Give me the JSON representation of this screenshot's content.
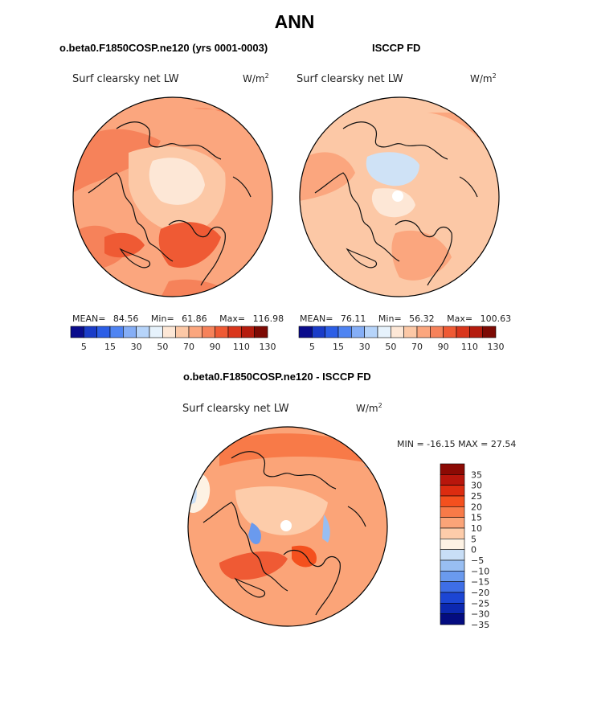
{
  "figure": {
    "title": "ANN",
    "left_header": "o.beta0.F1850COSP.ne120 (yrs 0001-0003)",
    "right_header": "ISCCP FD",
    "diff_header": "o.beta0.F1850COSP.ne120 - ISCCP FD"
  },
  "panels": {
    "model": {
      "variable": "Surf clearsky net LW",
      "units_base": "W/m",
      "units_exp": "2",
      "mean_label": "MEAN=",
      "mean": "84.56",
      "min_label": "Min=",
      "min": "61.86",
      "max_label": "Max=",
      "max": "116.98"
    },
    "obs": {
      "variable": "Surf clearsky net LW",
      "units_base": "W/m",
      "units_exp": "2",
      "mean_label": "MEAN=",
      "mean": "76.11",
      "min_label": "Min=",
      "min": "56.32",
      "max_label": "Max=",
      "max": "100.63"
    },
    "diff": {
      "variable": "Surf clearsky net LW",
      "units_base": "W/m",
      "units_exp": "2",
      "minmax_text": "MIN = -16.15 MAX =  27.54"
    }
  },
  "colorbar_abs": {
    "tick_labels": [
      "5",
      "15",
      "30",
      "50",
      "70",
      "90",
      "110",
      "130"
    ],
    "colors": [
      "#0a0c8c",
      "#1a3cc8",
      "#2c5ee6",
      "#4f84f2",
      "#85aef6",
      "#b6d4fa",
      "#e6f2fc",
      "#fde7d6",
      "#fcc8a6",
      "#fba67e",
      "#f6825a",
      "#ef5a34",
      "#d9361c",
      "#b51c0e",
      "#7d0a04"
    ]
  },
  "colorbar_diff": {
    "tick_labels": [
      "35",
      "30",
      "25",
      "20",
      "15",
      "10",
      "5",
      "0",
      "−5",
      "−10",
      "−15",
      "−20",
      "−25",
      "−30",
      "−35"
    ],
    "colors": [
      "#8c0a04",
      "#b8160c",
      "#dc2c10",
      "#f4501e",
      "#f87a48",
      "#fba478",
      "#fdccaa",
      "#fdf2e4",
      "#c8def6",
      "#98bef2",
      "#6a9aee",
      "#3e6ee6",
      "#1c46d4",
      "#0c28b0",
      "#040c80"
    ]
  }
}
